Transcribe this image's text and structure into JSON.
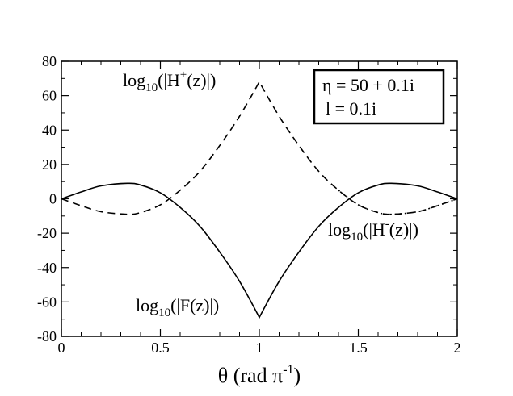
{
  "chart_data": {
    "type": "line",
    "xlabel": "θ (rad π",
    "xlabel_sup": "-1",
    "xlabel_close": ")",
    "ylabel": "",
    "xlim": [
      0,
      2
    ],
    "ylim": [
      -80,
      80
    ],
    "x_ticks": [
      0,
      0.5,
      1,
      1.5,
      2
    ],
    "x_tick_labels": [
      "0",
      "0.5",
      "1",
      "1.5",
      "2"
    ],
    "y_ticks": [
      -80,
      -60,
      -40,
      -20,
      0,
      20,
      40,
      60,
      80
    ],
    "y_tick_labels": [
      "-80",
      "-60",
      "-40",
      "-20",
      "0",
      "20",
      "40",
      "60",
      "80"
    ],
    "grid": false,
    "legend_position": "top-right",
    "legend_lines": [
      "η = 50 + 0.1i",
      "l = 0.1i"
    ],
    "annotations": {
      "hplus": {
        "pre": "log",
        "sub": "10",
        "mid": "(|H",
        "sup": "+",
        "post": "(z)|)"
      },
      "hminus": {
        "pre": "log",
        "sub": "10",
        "mid": "(|H",
        "sup": "-",
        "post": "(z)|)"
      },
      "f": {
        "pre": "log",
        "sub": "10",
        "mid": "(|F(z)|)",
        "sup": "",
        "post": ""
      }
    },
    "series": [
      {
        "key": "F",
        "style": "solid",
        "x": [
          0,
          0.1,
          0.2,
          0.333,
          0.4,
          0.5,
          0.6,
          0.7,
          0.8,
          0.9,
          1.0,
          1.1,
          1.2,
          1.3,
          1.4,
          1.5,
          1.6,
          1.667,
          1.8,
          1.9,
          2.0
        ],
        "y": [
          0,
          4.0,
          7.5,
          9.0,
          8.0,
          3.5,
          -5.0,
          -16.0,
          -31.0,
          -48.0,
          -69.0,
          -48.0,
          -31.0,
          -16.0,
          -5.0,
          3.5,
          8.0,
          9.0,
          7.5,
          4.0,
          0
        ]
      },
      {
        "key": "H+",
        "style": "dashed",
        "x": [
          0,
          0.1,
          0.2,
          0.333,
          0.4,
          0.5,
          0.6,
          0.7,
          0.8,
          0.9,
          1.0,
          1.1,
          1.2,
          1.3,
          1.4,
          1.5,
          1.6,
          1.667,
          1.8,
          1.9,
          2.0
        ],
        "y": [
          0,
          -4.0,
          -7.5,
          -9.0,
          -8.0,
          -3.5,
          5.0,
          16.0,
          31.0,
          48.0,
          68.0,
          48.0,
          31.0,
          16.0,
          5.0,
          -3.5,
          -8.0,
          -9.0,
          -7.5,
          -4.0,
          0
        ]
      },
      {
        "key": "H-",
        "style": "dotted",
        "x": [
          1.4,
          1.5,
          1.6,
          1.667,
          1.8,
          1.9,
          2.0
        ],
        "y": [
          5.0,
          -3.5,
          -8.0,
          -9.0,
          -7.5,
          -4.0,
          0
        ]
      }
    ]
  }
}
